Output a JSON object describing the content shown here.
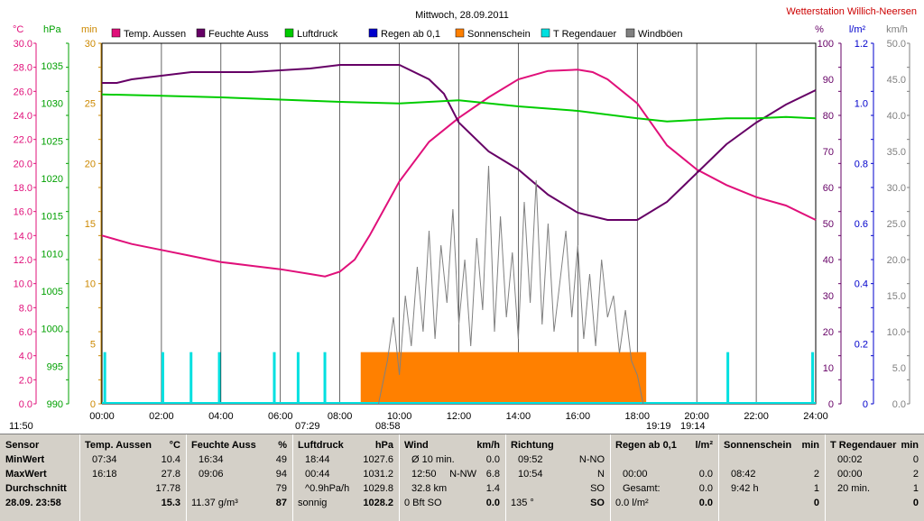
{
  "title": "Mittwoch, 28.09.2011",
  "station": "Wetterstation Willich-Neersen",
  "colors": {
    "temp": "#e0107a",
    "hum": "#660066",
    "press": "#00cc00",
    "rain": "#0000cc",
    "sun": "#ff8000",
    "raindur": "#00e0e0",
    "gust": "#808080",
    "temp_axis": "#e0107a",
    "press_axis": "#00a000",
    "min_axis": "#cc8800",
    "pct_axis": "#660066",
    "rain_axis": "#0000cc",
    "kmh_axis": "#808080"
  },
  "legend": [
    {
      "label": "Temp. Aussen",
      "color": "#e0107a"
    },
    {
      "label": "Feuchte Auss",
      "color": "#660066"
    },
    {
      "label": "Luftdruck",
      "color": "#00cc00"
    },
    {
      "label": "Regen ab 0,1",
      "color": "#0000cc"
    },
    {
      "label": "Sonnenschein",
      "color": "#ff8000"
    },
    {
      "label": "T Regendauer",
      "color": "#00e0e0"
    },
    {
      "label": "Windböen",
      "color": "#808080"
    }
  ],
  "axis_units": {
    "temp": "°C",
    "press": "hPa",
    "min": "min",
    "pct": "%",
    "rain": "l/m²",
    "kmh": "km/h"
  },
  "bottom_labels": {
    "t1": "11:50",
    "t2": "07:29",
    "t3": "08:58",
    "t4": "19:19",
    "t5": "19:14"
  },
  "chart_data": {
    "type": "line",
    "x_ticks": [
      "00:00",
      "02:00",
      "04:00",
      "06:00",
      "08:00",
      "10:00",
      "12:00",
      "14:00",
      "16:00",
      "18:00",
      "20:00",
      "22:00",
      "24:00"
    ],
    "axes": {
      "temp": {
        "ticks": [
          "0.0",
          "2.0",
          "4.0",
          "6.0",
          "8.0",
          "10.0",
          "12.0",
          "14.0",
          "16.0",
          "18.0",
          "20.0",
          "22.0",
          "24.0",
          "26.0",
          "28.0",
          "30.0"
        ],
        "ylim": [
          0,
          30
        ]
      },
      "press": {
        "ticks": [
          "990",
          "995",
          "1000",
          "1005",
          "1010",
          "1015",
          "1020",
          "1025",
          "1030",
          "1035"
        ],
        "ylim": [
          990,
          1038
        ]
      },
      "min": {
        "ticks": [
          "0",
          "5",
          "10",
          "15",
          "20",
          "25",
          "30"
        ],
        "ylim": [
          0,
          30
        ]
      },
      "pct": {
        "ticks": [
          "0",
          "10",
          "20",
          "30",
          "40",
          "50",
          "60",
          "70",
          "80",
          "90",
          "100"
        ],
        "ylim": [
          0,
          100
        ]
      },
      "rain": {
        "ticks": [
          "0",
          "0.2",
          "0.4",
          "0.6",
          "0.8",
          "1.0",
          "1.2"
        ],
        "ylim": [
          0,
          1.2
        ]
      },
      "kmh": {
        "ticks": [
          "0.0",
          "5.0",
          "10.0",
          "15.0",
          "20.0",
          "25.0",
          "30.0",
          "35.0",
          "40.0",
          "45.0",
          "50.0"
        ],
        "ylim": [
          0,
          50
        ]
      }
    },
    "series": [
      {
        "name": "Temp. Aussen",
        "axis": "temp",
        "x": [
          0,
          1,
          2,
          3,
          4,
          5,
          6,
          7,
          7.5,
          8,
          8.5,
          9,
          10,
          11,
          12,
          13,
          14,
          15,
          16,
          16.5,
          17,
          18,
          19,
          20,
          21,
          22,
          23,
          24
        ],
        "y": [
          14,
          13.3,
          12.8,
          12.3,
          11.8,
          11.5,
          11.2,
          10.8,
          10.6,
          11,
          12,
          14,
          18.5,
          21.8,
          23.8,
          25.5,
          27,
          27.7,
          27.8,
          27.6,
          27,
          25,
          21.5,
          19.5,
          18.2,
          17.2,
          16.5,
          15.3
        ]
      },
      {
        "name": "Feuchte Auss",
        "axis": "pct",
        "x": [
          0,
          0.5,
          1,
          2,
          3,
          5,
          7,
          8,
          9,
          10,
          11,
          11.5,
          12,
          13,
          14,
          15,
          16,
          17,
          17.5,
          18,
          19,
          20,
          21,
          22,
          23,
          24
        ],
        "y": [
          89,
          89,
          90,
          91,
          92,
          92,
          93,
          94,
          94,
          94,
          90,
          86,
          78,
          70,
          65,
          58,
          53,
          51,
          51,
          51,
          56,
          64,
          72,
          78,
          83,
          87
        ]
      },
      {
        "name": "Luftdruck",
        "axis": "press",
        "x": [
          0,
          2,
          4,
          6,
          8,
          10,
          12,
          14,
          16,
          18,
          19,
          20,
          21,
          22,
          23,
          24
        ],
        "y": [
          1031.2,
          1031,
          1030.8,
          1030.5,
          1030.2,
          1030,
          1030.4,
          1029.6,
          1029,
          1028,
          1027.6,
          1027.8,
          1028,
          1028,
          1028.2,
          1028
        ]
      },
      {
        "name": "Windböen",
        "axis": "kmh",
        "x": [
          9.3,
          9.6,
          9.8,
          10,
          10.2,
          10.4,
          10.6,
          10.8,
          11,
          11.2,
          11.4,
          11.6,
          11.8,
          12,
          12.2,
          12.4,
          12.6,
          12.8,
          13,
          13.2,
          13.4,
          13.6,
          13.8,
          14,
          14.2,
          14.4,
          14.6,
          14.8,
          15,
          15.2,
          15.4,
          15.6,
          15.8,
          16,
          16.2,
          16.4,
          16.6,
          16.8,
          17,
          17.2,
          17.4,
          17.6,
          17.8,
          18,
          18.2
        ],
        "y": [
          0,
          6,
          12,
          4,
          15,
          8,
          19,
          10,
          24,
          9,
          22,
          14,
          27,
          11,
          20,
          8,
          23,
          13,
          33,
          10,
          26,
          12,
          21,
          9,
          28,
          14,
          31,
          11,
          25,
          10,
          17,
          24,
          12,
          22,
          9,
          18,
          8,
          20,
          12,
          15,
          7,
          13,
          6,
          4,
          0
        ]
      }
    ],
    "sunshine_x": [
      8.7,
      18.3
    ],
    "sunshine_level_min": 4.3,
    "rain_duration_x": [
      0.05,
      2.0,
      2.95,
      3.9,
      5.75,
      6.55,
      7.45,
      21.0,
      23.85
    ],
    "rain_duration_level_min": 4.3
  },
  "table": {
    "columns": [
      {
        "header": "Sensor",
        "unit": "",
        "rows": [
          "MinWert",
          "MaxWert",
          "Durchschnitt"
        ],
        "footer": "28.09. 23:58"
      },
      {
        "header": "Temp. Aussen",
        "unit": "°C",
        "rows": [
          "07:34",
          "16:18",
          ""
        ],
        "vals": [
          "10.4",
          "27.8",
          "17.78"
        ],
        "footer": "15.3"
      },
      {
        "header": "Feuchte Auss",
        "unit": "%",
        "rows": [
          "16:34",
          "09:06",
          ""
        ],
        "vals": [
          "49",
          "94",
          "79"
        ],
        "footer_l": "11.37 g/m³",
        "footer": "87"
      },
      {
        "header": "Luftdruck",
        "unit": "hPa",
        "rows": [
          "18:44",
          "00:44",
          "^0.9hPa/h"
        ],
        "vals": [
          "1027.6",
          "1031.2",
          "1029.8"
        ],
        "footer_l": "sonnig",
        "footer": "1028.2"
      },
      {
        "header": "Wind",
        "unit": "km/h",
        "rows": [
          "Ø 10 min.",
          "12:50",
          "32.8 km"
        ],
        "mid": [
          "",
          "N-NW",
          ""
        ],
        "vals": [
          "0.0",
          "6.8",
          "1.4"
        ],
        "footer_l": "0 Bft SO",
        "footer": "0.0"
      },
      {
        "header": "Richtung",
        "unit": "",
        "rows": [
          "09:52",
          "10:54",
          ""
        ],
        "vals": [
          "N-NO",
          "N",
          "SO"
        ],
        "footer_l": "135 °",
        "footer": "SO"
      },
      {
        "header": "Regen ab 0,1",
        "unit": "l/m²",
        "rows": [
          "",
          "00:00",
          "Gesamt:"
        ],
        "vals": [
          "",
          "0.0",
          "0.0"
        ],
        "footer_l": "0.0 l/m²",
        "footer": "0.0"
      },
      {
        "header": "Sonnenschein",
        "unit": "min",
        "rows": [
          "",
          "08:42",
          "9:42 h"
        ],
        "vals": [
          "",
          "2",
          "1"
        ],
        "footer": "0"
      },
      {
        "header": "T Regendauer",
        "unit": "min",
        "rows": [
          "00:02",
          "00:00",
          "20 min."
        ],
        "vals": [
          "0",
          "2",
          "1"
        ],
        "footer": "0"
      }
    ]
  }
}
